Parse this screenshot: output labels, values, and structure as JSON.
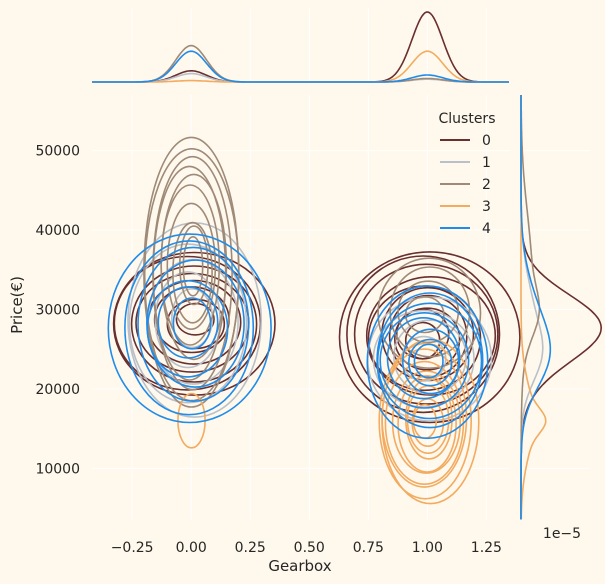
{
  "chart_data": {
    "type": "kde-contour-jointplot",
    "xlabel": "Gearbox",
    "ylabel": "Price(€)",
    "xlim": [
      -0.42,
      1.35
    ],
    "ylim": [
      3500,
      57000
    ],
    "x_ticks": [
      -0.25,
      0.0,
      0.25,
      0.5,
      0.75,
      1.0,
      1.25
    ],
    "x_tick_labels": [
      "−0.25",
      "0.00",
      "0.25",
      "0.50",
      "0.75",
      "1.00",
      "1.25"
    ],
    "y_ticks": [
      10000,
      20000,
      30000,
      40000,
      50000
    ],
    "y_tick_labels": [
      "10000",
      "20000",
      "30000",
      "40000",
      "50000"
    ],
    "right_axis_offset_label": "1e−5",
    "grid": true,
    "legend": {
      "title": "Clusters",
      "placement": "top-right"
    },
    "series": [
      {
        "name": "0",
        "color": "#682F2F",
        "groups": [
          {
            "x": 0.0,
            "y": 28500,
            "sx": 0.34,
            "sy": 9000,
            "n": 8
          },
          {
            "x": 1.0,
            "y": 26500,
            "sx": 0.37,
            "sy": 10800,
            "n": 10
          }
        ],
        "top_peaks": [
          0.16,
          1.0
        ],
        "right_peak": 1.0
      },
      {
        "name": "1",
        "color": "#B9C0C9",
        "groups": [
          {
            "x": 0.0,
            "y": 28500,
            "sx": 0.3,
            "sy": 12500,
            "n": 5
          },
          {
            "x": 1.0,
            "y": 24000,
            "sx": 0.28,
            "sy": 8000,
            "n": 4
          }
        ],
        "top_peaks": [
          0.12,
          0.04
        ],
        "right_peak": 0.3
      },
      {
        "name": "2",
        "color": "#9F8A78",
        "groups": [
          {
            "x": 0.0,
            "y": 35000,
            "sx": 0.21,
            "sy": 17500,
            "n": 10
          },
          {
            "x": 1.0,
            "y": 29500,
            "sx": 0.23,
            "sy": 7000,
            "n": 4
          }
        ],
        "top_peaks": [
          0.52,
          0.05
        ],
        "right_peak": 0.25
      },
      {
        "name": "3",
        "color": "#F3AB60",
        "groups": [
          {
            "x": 0.0,
            "y": 16000,
            "sx": 0.06,
            "sy": 3500,
            "n": 1
          },
          {
            "x": 1.0,
            "y": 16000,
            "sx": 0.22,
            "sy": 10500,
            "n": 10
          }
        ],
        "top_peaks": [
          0.02,
          0.44
        ],
        "right_peak": 0.3
      },
      {
        "name": "4",
        "color": "#1F8CEA",
        "groups": [
          {
            "x": 0.0,
            "y": 28000,
            "sx": 0.33,
            "sy": 12500,
            "n": 7
          },
          {
            "x": 1.0,
            "y": 23500,
            "sx": 0.27,
            "sy": 9200,
            "n": 8
          }
        ],
        "top_peaks": [
          0.44,
          0.1
        ],
        "right_peak": 0.4
      }
    ]
  }
}
